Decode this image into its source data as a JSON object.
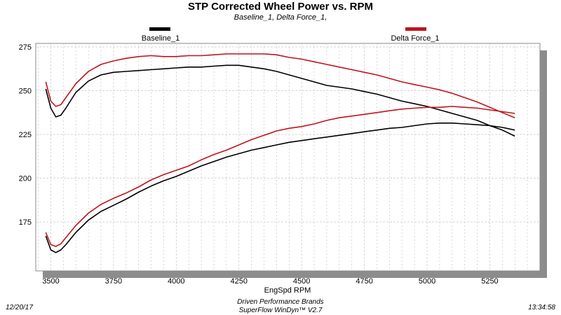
{
  "header": {
    "title": "STP Corrected Wheel Power vs. RPM",
    "subtitle": "Baseline_1, Delta Force_1,"
  },
  "footer": {
    "date": "12/20/17",
    "company": "Driven Performance Brands",
    "software": "SuperFlow WinDyn™  V2.7",
    "time": "13:34:58"
  },
  "colors": {
    "baseline": "#000000",
    "delta_force": "#c0141e",
    "plot_background": "#ffffff",
    "shadow": "#8c8c8c",
    "grid": "#c8c8c8"
  },
  "chart_data": {
    "type": "line",
    "title": "STP Corrected Wheel Power vs. RPM",
    "subtitle": "Baseline_1, Delta Force_1,",
    "xlabel": "EngSpd  RPM",
    "ylabel": "",
    "xlim": [
      3440,
      5450
    ],
    "ylim": [
      147,
      277
    ],
    "x_ticks": [
      3500,
      3750,
      4000,
      4250,
      4500,
      4750,
      5000,
      5250
    ],
    "y_ticks": [
      175,
      200,
      225,
      250,
      275
    ],
    "grid": true,
    "legend_position": "top",
    "series": [
      {
        "name": "Baseline_1",
        "color": "#000000",
        "role": "power",
        "x": [
          3480,
          3500,
          3520,
          3540,
          3560,
          3600,
          3650,
          3700,
          3750,
          3800,
          3850,
          3900,
          3950,
          4000,
          4050,
          4100,
          4150,
          4200,
          4250,
          4300,
          4350,
          4400,
          4450,
          4500,
          4550,
          4600,
          4650,
          4700,
          4750,
          4800,
          4850,
          4900,
          4950,
          5000,
          5050,
          5100,
          5150,
          5200,
          5250,
          5300,
          5350
        ],
        "y": [
          251,
          240,
          235,
          236,
          240,
          249,
          255.5,
          259,
          260.5,
          261,
          261.5,
          262,
          262.5,
          263,
          263.5,
          263.5,
          264,
          264.5,
          264.5,
          263.5,
          262.5,
          261,
          259,
          257,
          255,
          253,
          252,
          251,
          249.5,
          248,
          246,
          244,
          242.5,
          241,
          239,
          237,
          235,
          233,
          230,
          227.5,
          224
        ]
      },
      {
        "name": "Delta Force_1",
        "color": "#c0141e",
        "role": "power",
        "x": [
          3480,
          3500,
          3520,
          3540,
          3560,
          3600,
          3650,
          3700,
          3750,
          3800,
          3850,
          3900,
          3950,
          4000,
          4050,
          4100,
          4150,
          4200,
          4250,
          4300,
          4350,
          4400,
          4450,
          4500,
          4550,
          4600,
          4650,
          4700,
          4750,
          4800,
          4850,
          4900,
          4950,
          5000,
          5050,
          5100,
          5150,
          5200,
          5250,
          5300,
          5350
        ],
        "y": [
          255,
          244,
          241,
          242,
          246,
          254,
          261,
          265,
          267,
          268.5,
          269.5,
          270,
          269.5,
          269.5,
          270,
          270,
          270.5,
          271,
          271,
          271,
          271,
          270.5,
          269,
          268,
          266.5,
          265,
          263.5,
          262,
          260.5,
          259,
          257,
          255,
          253.5,
          252,
          250.5,
          248.5,
          246,
          243.5,
          240.5,
          237.5,
          234.5
        ]
      },
      {
        "name": "Baseline_1",
        "color": "#000000",
        "role": "torque",
        "x": [
          3480,
          3500,
          3520,
          3540,
          3560,
          3600,
          3650,
          3700,
          3750,
          3800,
          3850,
          3900,
          3950,
          4000,
          4050,
          4100,
          4150,
          4200,
          4250,
          4300,
          4350,
          4400,
          4450,
          4500,
          4550,
          4600,
          4650,
          4700,
          4750,
          4800,
          4850,
          4900,
          4950,
          5000,
          5050,
          5100,
          5150,
          5200,
          5250,
          5300,
          5350
        ],
        "y": [
          167,
          159,
          157.5,
          159,
          162,
          169,
          176,
          181,
          184.5,
          188,
          192,
          195.5,
          198.5,
          201,
          204,
          207,
          209.5,
          212,
          214,
          216,
          217.5,
          219,
          220.5,
          221.5,
          222.5,
          223.5,
          224.5,
          225.5,
          226.5,
          227.5,
          228.5,
          229,
          230,
          231,
          231.5,
          231.5,
          231,
          230.5,
          230,
          229,
          227.5
        ]
      },
      {
        "name": "Delta Force_1",
        "color": "#c0141e",
        "role": "torque",
        "x": [
          3480,
          3500,
          3520,
          3540,
          3560,
          3600,
          3650,
          3700,
          3750,
          3800,
          3850,
          3900,
          3950,
          4000,
          4050,
          4100,
          4150,
          4200,
          4250,
          4300,
          4350,
          4400,
          4450,
          4500,
          4550,
          4600,
          4650,
          4700,
          4750,
          4800,
          4850,
          4900,
          4950,
          5000,
          5050,
          5100,
          5150,
          5200,
          5250,
          5300,
          5350
        ],
        "y": [
          169,
          162,
          161,
          162.5,
          166,
          173,
          180,
          185,
          188.5,
          191.5,
          195,
          199,
          202,
          204.5,
          207,
          210.5,
          213.5,
          216,
          219,
          222,
          224.5,
          227,
          228.5,
          229.5,
          231,
          233,
          234.5,
          235.5,
          236.5,
          237.5,
          238.5,
          239.5,
          240,
          240.5,
          240.5,
          241,
          240.5,
          240,
          239,
          238,
          237
        ]
      }
    ]
  }
}
